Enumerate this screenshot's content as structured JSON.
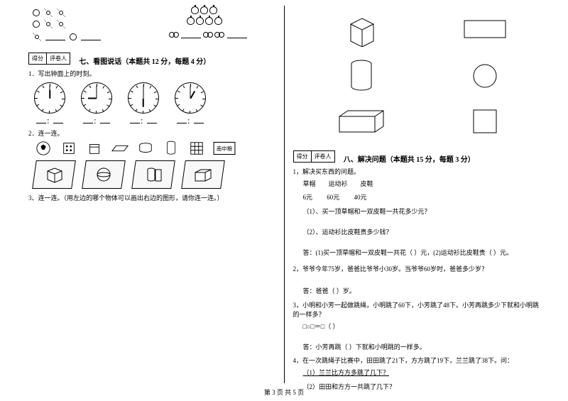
{
  "footer": "第 3 页  共 5 页",
  "score_labels": {
    "score": "得分",
    "reviewer": "评卷人"
  },
  "section7": {
    "title": "七、看图说话（本题共 12 分，每题 4 分）",
    "q1": "1．写出钟面上的时刻。",
    "q2": "2．连一连。",
    "q3": "3、连一连。（用左边的哪个物体可以画出右边的图形，请你连一连。）",
    "clock_blank": "：",
    "clocks": [
      {
        "hour_angle": 90,
        "min_angle": 0
      },
      {
        "hour_angle": 270,
        "min_angle": 180
      },
      {
        "hour_angle": 180,
        "min_angle": 0
      },
      {
        "hour_angle": 300,
        "min_angle": 180
      }
    ]
  },
  "section8": {
    "title": "八、解决问题（本题共 15 分，每题 3 分）",
    "q1": "1，解决买东西的问题。",
    "items_header": "草帽        运动衫        皮鞋",
    "items_price": "6元         60元         40元",
    "q1_1": "（1）、买一顶草帽和一双皮鞋一共花多少元？",
    "q1_2": "（2）、运动衫比皮鞋贵多少钱？",
    "q1_ans": "答：(1)买一顶草帽和一双皮鞋一共花（   ）元，(2)运动衫比皮鞋贵（   ）元。",
    "q2": "2，爷爷今年75岁，爸爸比爷爷小30岁。当爷爷60岁时，爸爸多少岁？",
    "q2_ans": "答：爸爸（   ）岁。",
    "q3": "3，小明和小芳一起做跳绳，小明跳了60下，小芳跳了48下。小芳再跳多少下就和小明跳的一样多？",
    "q3_eq": "□○□＝□（   ）",
    "q3_ans": "答：小芳再跳（   ）下就和小明跳的一样多。",
    "q4": "4，在一次跳绳子比赛中，田田跳了21下，方方跳了19下，兰兰跳了38下。问：",
    "q4_1": "（1）兰兰比方方多跳了几下？",
    "q4_2": "（2）田田和方方一共跳了几下？"
  },
  "colors": {
    "line": "#000000",
    "bg": "#ffffff"
  }
}
